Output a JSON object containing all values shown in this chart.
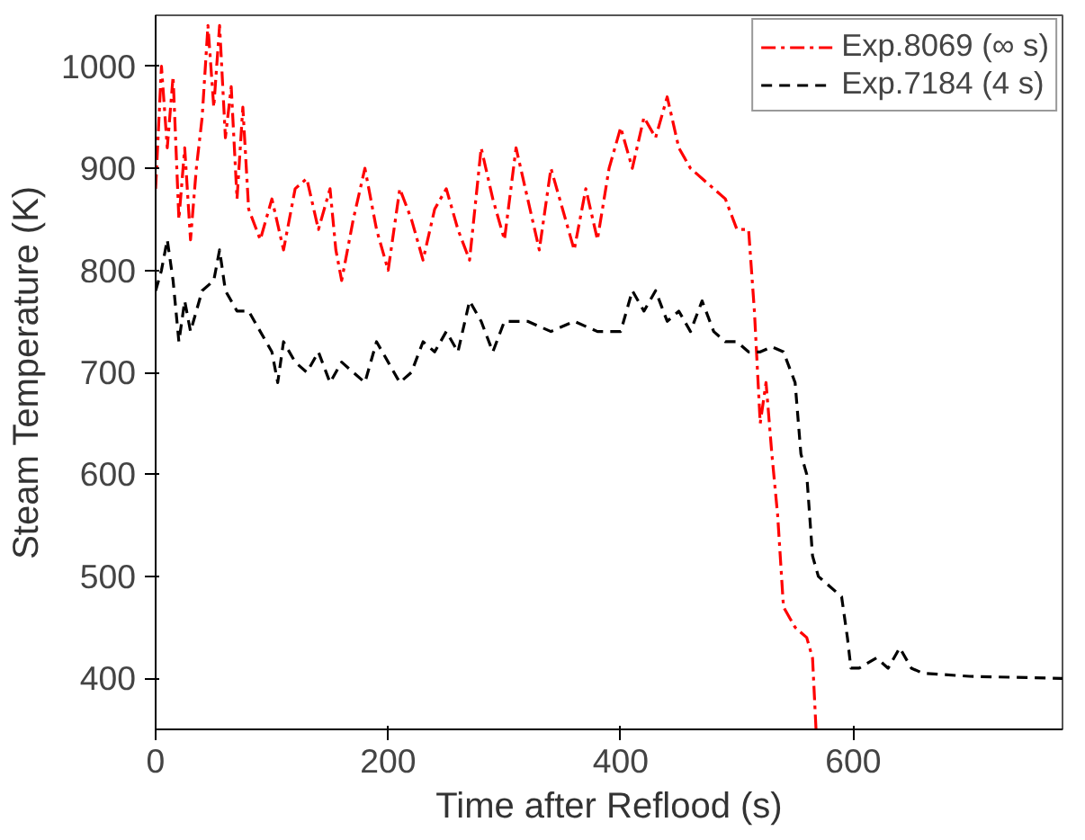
{
  "chart_data": {
    "type": "line",
    "xlabel": "Time after Reflood (s)",
    "ylabel": "Steam Temperature (K)",
    "xlim": [
      0,
      780
    ],
    "ylim": [
      350,
      1050
    ],
    "xticks": [
      0,
      200,
      400,
      600
    ],
    "yticks": [
      400,
      500,
      600,
      700,
      800,
      900,
      1000
    ],
    "grid": false,
    "legend": "top right",
    "marker": "none",
    "series": [
      {
        "name": "Exp.8069 (∞ s)",
        "color": "#ff0000",
        "line_style": "dashdot",
        "x": [
          0,
          5,
          10,
          15,
          20,
          25,
          30,
          35,
          40,
          45,
          50,
          55,
          60,
          65,
          70,
          75,
          80,
          90,
          100,
          110,
          120,
          130,
          140,
          150,
          155,
          160,
          170,
          180,
          190,
          200,
          210,
          220,
          230,
          240,
          250,
          260,
          270,
          280,
          290,
          300,
          310,
          320,
          330,
          340,
          350,
          360,
          370,
          380,
          390,
          400,
          410,
          420,
          430,
          440,
          450,
          460,
          470,
          480,
          490,
          500,
          510,
          515,
          520,
          525,
          530,
          535,
          540,
          550,
          560,
          565,
          568
        ],
        "values": [
          880,
          1000,
          920,
          990,
          850,
          920,
          830,
          900,
          950,
          1040,
          960,
          1040,
          930,
          980,
          870,
          960,
          860,
          830,
          870,
          820,
          880,
          890,
          840,
          880,
          820,
          790,
          850,
          900,
          840,
          800,
          880,
          850,
          810,
          860,
          880,
          840,
          810,
          920,
          870,
          830,
          920,
          870,
          820,
          900,
          860,
          820,
          880,
          830,
          900,
          940,
          900,
          950,
          930,
          970,
          920,
          900,
          890,
          880,
          870,
          840,
          840,
          760,
          650,
          690,
          620,
          560,
          470,
          450,
          440,
          420,
          350
        ]
      },
      {
        "name": "Exp.7184 (4 s)",
        "color": "#000000",
        "line_style": "dashed",
        "x": [
          0,
          5,
          10,
          15,
          20,
          25,
          30,
          40,
          50,
          55,
          60,
          70,
          80,
          90,
          100,
          105,
          110,
          120,
          130,
          140,
          150,
          160,
          170,
          180,
          190,
          200,
          210,
          220,
          230,
          240,
          250,
          260,
          270,
          280,
          290,
          300,
          320,
          340,
          360,
          380,
          400,
          410,
          420,
          430,
          440,
          450,
          460,
          470,
          480,
          490,
          500,
          510,
          520,
          530,
          540,
          550,
          555,
          560,
          565,
          570,
          580,
          590,
          595,
          598,
          605,
          620,
          630,
          640,
          650,
          660,
          700,
          780
        ],
        "values": [
          780,
          800,
          830,
          790,
          730,
          770,
          740,
          780,
          790,
          820,
          780,
          760,
          760,
          740,
          720,
          690,
          730,
          710,
          700,
          720,
          690,
          710,
          700,
          690,
          730,
          710,
          690,
          700,
          730,
          720,
          740,
          720,
          770,
          750,
          720,
          750,
          750,
          740,
          750,
          740,
          740,
          780,
          760,
          780,
          750,
          760,
          740,
          770,
          740,
          730,
          730,
          720,
          720,
          725,
          720,
          690,
          620,
          600,
          520,
          500,
          490,
          480,
          440,
          410,
          410,
          420,
          410,
          430,
          410,
          405,
          402,
          400
        ]
      }
    ]
  }
}
